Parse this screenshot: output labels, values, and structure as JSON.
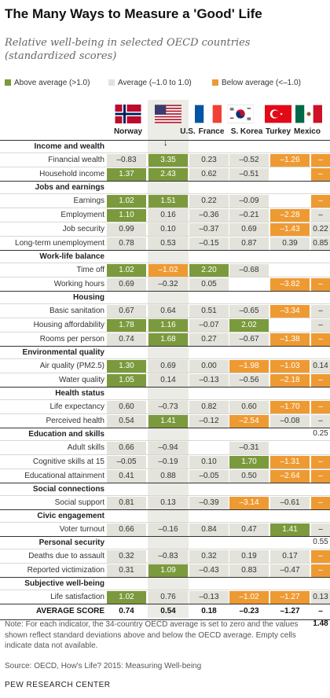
{
  "title": "The Many Ways to Measure a 'Good' Life",
  "subtitle": "Relative well-being in selected OECD countries (standardized scores)",
  "legend": {
    "above": "Above average (>1.0)",
    "average": "Average (–1.0 to 1.0)",
    "below": "Below average (<–1.0)"
  },
  "colors": {
    "above": "#7b9a3d",
    "average": "#e3e3dc",
    "below": "#ee9a33",
    "highlight_column": "#ecece7"
  },
  "countries": [
    "Norway",
    "U.S.",
    "France",
    "S. Korea",
    "Turkey",
    "Mexico"
  ],
  "flag_icons": [
    "norway-flag-icon",
    "us-flag-icon",
    "france-flag-icon",
    "south-korea-flag-icon",
    "turkey-flag-icon",
    "mexico-flag-icon"
  ],
  "highlight_marker": "↓",
  "chart_data": {
    "type": "table",
    "columns": [
      "Norway",
      "U.S.",
      "France",
      "S. Korea",
      "Turkey",
      "Mexico"
    ],
    "sections": [
      {
        "name": "Income and wealth",
        "rows": [
          {
            "indicator": "Financial wealth",
            "values": [
              "–0.83",
              "3.35",
              "0.23",
              "–0.52",
              "–1.26",
              "–1.04"
            ]
          },
          {
            "indicator": "Household income",
            "values": [
              "1.37",
              "2.43",
              "0.62",
              "–0.51",
              "",
              "–1.67"
            ]
          }
        ]
      },
      {
        "name": "Jobs and earnings",
        "rows": [
          {
            "indicator": "Earnings",
            "values": [
              "1.02",
              "1.51",
              "0.22",
              "–0.09",
              "",
              "–1.99"
            ]
          },
          {
            "indicator": "Employment",
            "values": [
              "1.10",
              "0.16",
              "–0.36",
              "–0.21",
              "–2.28",
              "–0.85"
            ]
          },
          {
            "indicator": "Job security",
            "values": [
              "0.99",
              "0.10",
              "–0.37",
              "0.69",
              "–1.43",
              "0.22"
            ]
          },
          {
            "indicator": "Long-term unemployment",
            "values": [
              "0.78",
              "0.53",
              "–0.15",
              "0.87",
              "0.39",
              "0.85"
            ]
          }
        ]
      },
      {
        "name": "Work-life balance",
        "rows": [
          {
            "indicator": "Time off",
            "values": [
              "1.02",
              "–1.02",
              "2.20",
              "–0.68",
              "",
              ""
            ]
          },
          {
            "indicator": "Working hours",
            "values": [
              "0.69",
              "–0.32",
              "0.05",
              "",
              "–3.82",
              "–2.39"
            ]
          }
        ]
      },
      {
        "name": "Housing",
        "rows": [
          {
            "indicator": "Basic sanitation",
            "values": [
              "0.67",
              "0.64",
              "0.51",
              "–0.65",
              "–3.34",
              "–0.65"
            ]
          },
          {
            "indicator": "Housing affordability",
            "values": [
              "1.78",
              "1.16",
              "–0.07",
              "2.02",
              "",
              "–0.07"
            ]
          },
          {
            "indicator": "Rooms per person",
            "values": [
              "0.74",
              "1.68",
              "0.27",
              "–0.67",
              "–1.38",
              "–1.61"
            ]
          }
        ]
      },
      {
        "name": "Environmental quality",
        "rows": [
          {
            "indicator": "Air quality (PM2.5)",
            "values": [
              "1.30",
              "0.69",
              "0.00",
              "–1.98",
              "–1.03",
              "0.14"
            ]
          },
          {
            "indicator": "Water quality",
            "values": [
              "1.05",
              "0.14",
              "–0.13",
              "–0.56",
              "–2.18",
              "–1.68"
            ]
          }
        ]
      },
      {
        "name": "Health status",
        "rows": [
          {
            "indicator": "Life expectancy",
            "values": [
              "0.60",
              "–0.73",
              "0.82",
              "0.60",
              "–1.70",
              "–2.49"
            ]
          },
          {
            "indicator": "Perceived health",
            "values": [
              "0.54",
              "1.41",
              "–0.12",
              "–2.54",
              "–0.08",
              "–0.25"
            ]
          }
        ]
      },
      {
        "name": "Education and skills",
        "rows": [
          {
            "indicator": "Adult skills",
            "values": [
              "0.66",
              "–0.94",
              "",
              "–0.31",
              "",
              ""
            ]
          },
          {
            "indicator": "Cognitive skills at 15",
            "values": [
              "–0.05",
              "–0.19",
              "0.10",
              "1.70",
              "–1.31",
              "–3.00"
            ]
          },
          {
            "indicator": "Educational attainment",
            "values": [
              "0.41",
              "0.88",
              "–0.05",
              "0.50",
              "–2.64",
              "–2.41"
            ]
          }
        ]
      },
      {
        "name": "Social connections",
        "rows": [
          {
            "indicator": "Social support",
            "values": [
              "0.81",
              "0.13",
              "–0.39",
              "–3.14",
              "–0.61",
              "–2.34"
            ]
          }
        ]
      },
      {
        "name": "Civic engagement",
        "rows": [
          {
            "indicator": "Voter turnout",
            "values": [
              "0.66",
              "–0.16",
              "0.84",
              "0.47",
              "1.41",
              "–0.55"
            ]
          }
        ]
      },
      {
        "name": "Personal security",
        "rows": [
          {
            "indicator": "Deaths due to assault",
            "values": [
              "0.32",
              "–0.83",
              "0.32",
              "0.19",
              "0.17",
              "–5.39"
            ]
          },
          {
            "indicator": "Reported victimization",
            "values": [
              "0.31",
              "1.09",
              "–0.43",
              "0.83",
              "–0.47",
              "–3.94"
            ]
          }
        ]
      },
      {
        "name": "Subjective well-being",
        "rows": [
          {
            "indicator": "Life satisfaction",
            "values": [
              "1.02",
              "0.76",
              "–0.13",
              "–1.02",
              "–1.27",
              "0.13"
            ]
          }
        ]
      }
    ],
    "average": {
      "label": "AVERAGE SCORE",
      "values": [
        "0.74",
        "0.54",
        "0.18",
        "–0.23",
        "–1.27",
        "–1.48"
      ]
    }
  },
  "note": "Note: For each indicator, the 34-country OECD average is set to zero and the values shown reflect standard deviations above and below the OECD average. Empty cells indicate data not available.",
  "source": "Source: OECD, How's Life? 2015: Measuring Well-being",
  "credit": "PEW RESEARCH CENTER"
}
